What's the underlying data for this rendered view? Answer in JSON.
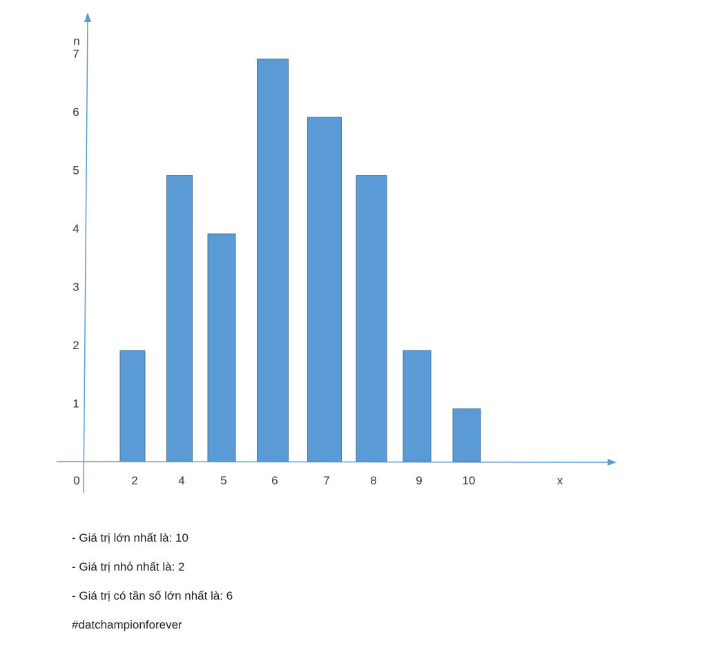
{
  "chart_data": {
    "type": "bar",
    "categories": [
      "2",
      "4",
      "5",
      "6",
      "7",
      "8",
      "9",
      "10"
    ],
    "values": [
      2,
      5,
      4,
      7,
      6,
      5,
      2,
      1
    ],
    "title": "",
    "xlabel": "x",
    "ylabel": "n",
    "origin_label": "0",
    "y_ticks": [
      "1",
      "2",
      "3",
      "4",
      "5",
      "6",
      "7"
    ],
    "ylim": [
      0,
      7
    ],
    "grid": false,
    "bar_color": "#5b9bd5",
    "axis_color": "#5b9bd5"
  },
  "notes": [
    "- Giá trị lớn nhất là: 10",
    "- Giá trị nhỏ nhất là: 2",
    "- Giá trị có tần số lớn nhất là: 6",
    "#datchampionforever"
  ]
}
